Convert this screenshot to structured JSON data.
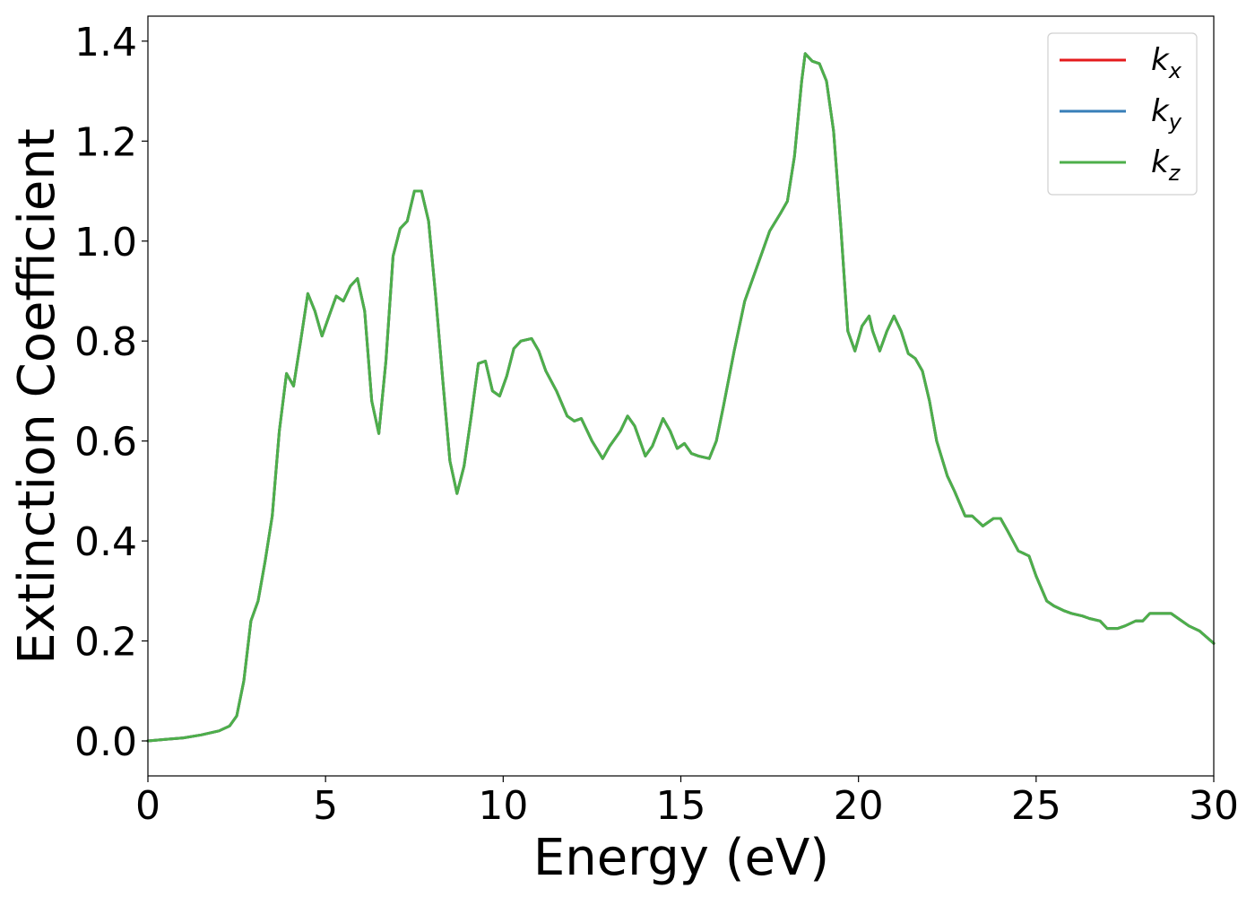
{
  "chart_data": {
    "type": "line",
    "title": "",
    "xlabel": "Energy (eV)",
    "ylabel": "Extinction Coefficient",
    "xlim": [
      0,
      30
    ],
    "ylim": [
      -0.07,
      1.45
    ],
    "xticks": [
      "0",
      "5",
      "10",
      "15",
      "20",
      "25",
      "30"
    ],
    "yticks": [
      "0.0",
      "0.2",
      "0.4",
      "0.6",
      "0.8",
      "1.0",
      "1.2",
      "1.4"
    ],
    "grid": false,
    "legend_position": "top-right",
    "series": [
      {
        "name": "k",
        "subscript": "x",
        "color": "#e41a1c"
      },
      {
        "name": "k",
        "subscript": "y",
        "color": "#377eb8"
      },
      {
        "name": "k",
        "subscript": "z",
        "color": "#4daf4a"
      }
    ],
    "x": [
      0,
      0.5,
      1.0,
      1.5,
      2.0,
      2.3,
      2.5,
      2.7,
      2.9,
      3.1,
      3.3,
      3.5,
      3.7,
      3.9,
      4.1,
      4.3,
      4.5,
      4.7,
      4.9,
      5.1,
      5.3,
      5.5,
      5.7,
      5.9,
      6.1,
      6.3,
      6.5,
      6.7,
      6.9,
      7.1,
      7.3,
      7.5,
      7.7,
      7.9,
      8.1,
      8.3,
      8.5,
      8.7,
      8.9,
      9.1,
      9.3,
      9.5,
      9.7,
      9.9,
      10.1,
      10.3,
      10.5,
      10.8,
      11.0,
      11.2,
      11.5,
      11.8,
      12.0,
      12.2,
      12.5,
      12.8,
      13.0,
      13.3,
      13.5,
      13.7,
      14.0,
      14.2,
      14.5,
      14.7,
      14.9,
      15.1,
      15.3,
      15.5,
      15.8,
      16.0,
      16.2,
      16.5,
      16.8,
      17.0,
      17.3,
      17.5,
      17.8,
      18.0,
      18.2,
      18.4,
      18.5,
      18.7,
      18.9,
      19.1,
      19.3,
      19.5,
      19.7,
      19.9,
      20.1,
      20.3,
      20.4,
      20.6,
      20.8,
      21.0,
      21.2,
      21.4,
      21.6,
      21.8,
      22.0,
      22.2,
      22.5,
      22.7,
      23.0,
      23.2,
      23.5,
      23.8,
      24.0,
      24.2,
      24.5,
      24.8,
      25.0,
      25.3,
      25.5,
      25.8,
      26.0,
      26.3,
      26.5,
      26.8,
      27.0,
      27.3,
      27.5,
      27.8,
      28.0,
      28.2,
      28.5,
      28.8,
      29.0,
      29.3,
      29.6,
      30.0
    ],
    "y": [
      0.0,
      0.003,
      0.006,
      0.012,
      0.02,
      0.03,
      0.05,
      0.12,
      0.24,
      0.28,
      0.36,
      0.45,
      0.62,
      0.735,
      0.71,
      0.8,
      0.895,
      0.86,
      0.81,
      0.85,
      0.89,
      0.88,
      0.91,
      0.925,
      0.86,
      0.68,
      0.615,
      0.76,
      0.97,
      1.025,
      1.04,
      1.1,
      1.1,
      1.04,
      0.89,
      0.72,
      0.56,
      0.495,
      0.55,
      0.65,
      0.755,
      0.76,
      0.7,
      0.69,
      0.73,
      0.785,
      0.8,
      0.805,
      0.78,
      0.74,
      0.7,
      0.65,
      0.64,
      0.645,
      0.6,
      0.565,
      0.59,
      0.62,
      0.65,
      0.63,
      0.57,
      0.59,
      0.645,
      0.62,
      0.585,
      0.595,
      0.575,
      0.57,
      0.565,
      0.6,
      0.67,
      0.78,
      0.88,
      0.92,
      0.98,
      1.02,
      1.055,
      1.08,
      1.17,
      1.32,
      1.375,
      1.36,
      1.355,
      1.32,
      1.22,
      1.03,
      0.82,
      0.78,
      0.83,
      0.85,
      0.82,
      0.78,
      0.82,
      0.85,
      0.82,
      0.775,
      0.765,
      0.74,
      0.68,
      0.6,
      0.53,
      0.5,
      0.45,
      0.45,
      0.43,
      0.445,
      0.445,
      0.42,
      0.38,
      0.37,
      0.33,
      0.28,
      0.27,
      0.26,
      0.255,
      0.25,
      0.245,
      0.24,
      0.225,
      0.225,
      0.23,
      0.24,
      0.24,
      0.255,
      0.255,
      0.255,
      0.245,
      0.23,
      0.22,
      0.195
    ]
  }
}
